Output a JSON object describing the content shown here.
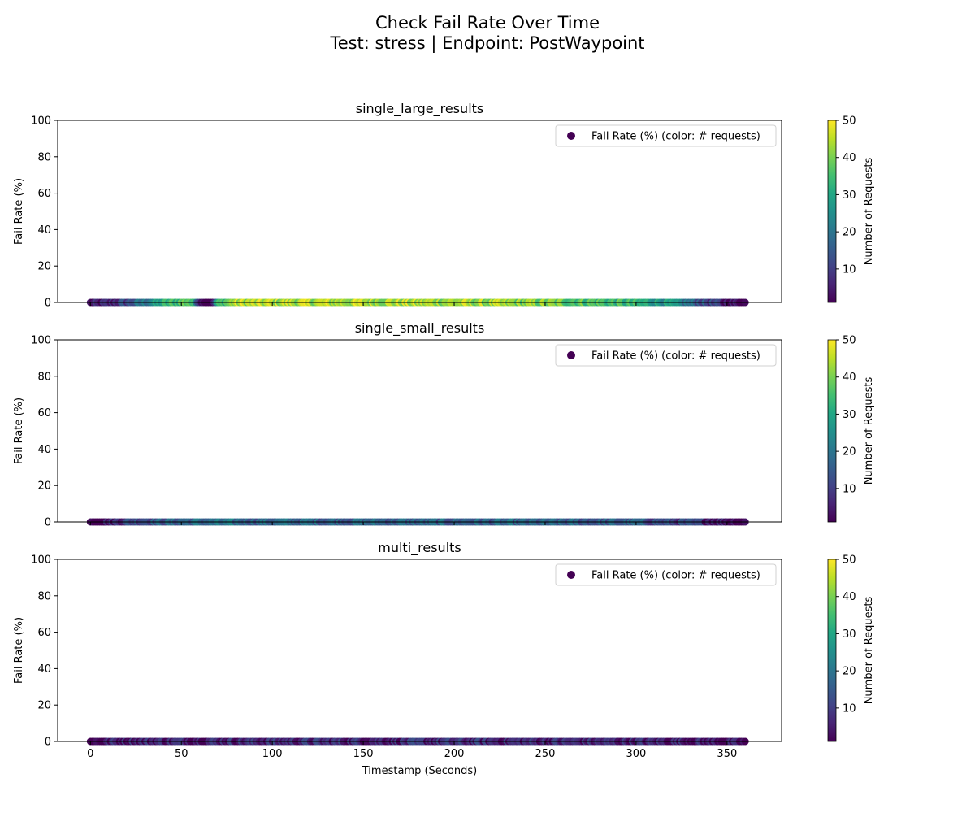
{
  "figure": {
    "title_line1": "Check Fail Rate Over Time",
    "title_line2": "Test: stress | Endpoint: PostWaypoint"
  },
  "chart_data": [
    {
      "type": "scatter",
      "title": "single_large_results",
      "xlabel": "",
      "ylabel": "Fail Rate (%)",
      "xlim": [
        -18,
        380
      ],
      "ylim": [
        0,
        100
      ],
      "x_ticks": [
        0,
        50,
        100,
        150,
        200,
        250,
        300,
        350
      ],
      "y_ticks": [
        0,
        20,
        40,
        60,
        80,
        100
      ],
      "legend": {
        "label": "Fail Rate (%) (color: # requests)",
        "position": "top-right"
      },
      "colorbar": {
        "label": "Number of Requests",
        "range": [
          1,
          50
        ],
        "ticks": [
          10,
          20,
          30,
          40,
          50
        ],
        "colormap": "viridis"
      },
      "series": [
        {
          "name": "Fail Rate (%) (color: # requests)",
          "y_constant": 0,
          "x_range": [
            0,
            360
          ],
          "x_step": 1,
          "color_profile": [
            {
              "x": 0,
              "requests": 2
            },
            {
              "x": 10,
              "requests": 5
            },
            {
              "x": 25,
              "requests": 15
            },
            {
              "x": 40,
              "requests": 30
            },
            {
              "x": 55,
              "requests": 40
            },
            {
              "x": 62,
              "requests": 2
            },
            {
              "x": 68,
              "requests": 2
            },
            {
              "x": 70,
              "requests": 30
            },
            {
              "x": 80,
              "requests": 44
            },
            {
              "x": 150,
              "requests": 44
            },
            {
              "x": 200,
              "requests": 43
            },
            {
              "x": 250,
              "requests": 40
            },
            {
              "x": 290,
              "requests": 34
            },
            {
              "x": 315,
              "requests": 28
            },
            {
              "x": 335,
              "requests": 15
            },
            {
              "x": 350,
              "requests": 4
            },
            {
              "x": 360,
              "requests": 1
            }
          ]
        }
      ]
    },
    {
      "type": "scatter",
      "title": "single_small_results",
      "xlabel": "",
      "ylabel": "Fail Rate (%)",
      "xlim": [
        -18,
        380
      ],
      "ylim": [
        0,
        100
      ],
      "x_ticks": [
        0,
        50,
        100,
        150,
        200,
        250,
        300,
        350
      ],
      "y_ticks": [
        0,
        20,
        40,
        60,
        80,
        100
      ],
      "legend": {
        "label": "Fail Rate (%) (color: # requests)",
        "position": "top-right"
      },
      "colorbar": {
        "label": "Number of Requests",
        "range": [
          1,
          50
        ],
        "ticks": [
          10,
          20,
          30,
          40,
          50
        ],
        "colormap": "viridis"
      },
      "series": [
        {
          "name": "Fail Rate (%) (color: # requests)",
          "y_constant": 0,
          "x_range": [
            0,
            360
          ],
          "x_step": 1,
          "color_profile": [
            {
              "x": 0,
              "requests": 1
            },
            {
              "x": 10,
              "requests": 5
            },
            {
              "x": 25,
              "requests": 14
            },
            {
              "x": 60,
              "requests": 18
            },
            {
              "x": 150,
              "requests": 17
            },
            {
              "x": 230,
              "requests": 16
            },
            {
              "x": 300,
              "requests": 15
            },
            {
              "x": 340,
              "requests": 8
            },
            {
              "x": 360,
              "requests": 1
            }
          ]
        }
      ]
    },
    {
      "type": "scatter",
      "title": "multi_results",
      "xlabel": "Timestamp (Seconds)",
      "ylabel": "Fail Rate (%)",
      "xlim": [
        -18,
        380
      ],
      "ylim": [
        0,
        100
      ],
      "x_ticks": [
        0,
        50,
        100,
        150,
        200,
        250,
        300,
        350
      ],
      "y_ticks": [
        0,
        20,
        40,
        60,
        80,
        100
      ],
      "legend": {
        "label": "Fail Rate (%) (color: # requests)",
        "position": "top-right"
      },
      "colorbar": {
        "label": "Number of Requests",
        "range": [
          1,
          50
        ],
        "ticks": [
          10,
          20,
          30,
          40,
          50
        ],
        "colormap": "viridis"
      },
      "series": [
        {
          "name": "Fail Rate (%) (color: # requests)",
          "y_constant": 0,
          "x_range": [
            0,
            360
          ],
          "x_step": 1,
          "color_profile": [
            {
              "x": 0,
              "requests": 1
            },
            {
              "x": 15,
              "requests": 6
            },
            {
              "x": 100,
              "requests": 7
            },
            {
              "x": 200,
              "requests": 7
            },
            {
              "x": 300,
              "requests": 6
            },
            {
              "x": 345,
              "requests": 4
            },
            {
              "x": 360,
              "requests": 1
            }
          ]
        }
      ]
    }
  ]
}
